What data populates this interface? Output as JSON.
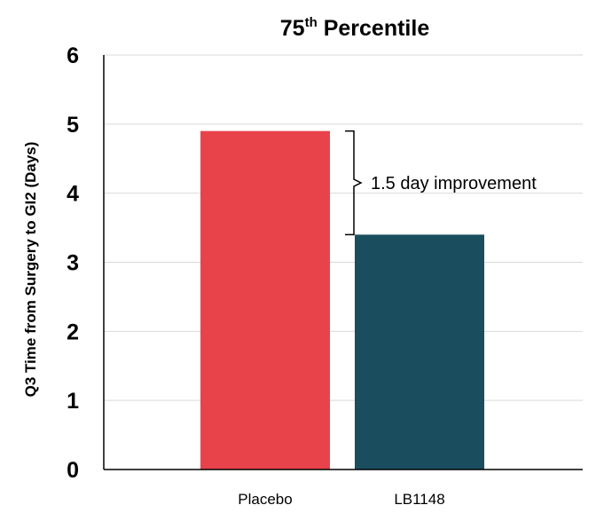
{
  "chart_data": {
    "type": "bar",
    "title": {
      "prefix": "75",
      "superscript": "th",
      "suffix": " Percentile"
    },
    "ylabel": "Q3 Time from Surgery to GI2 (Days)",
    "xlabel": "",
    "categories": [
      "Placebo",
      "LB1148"
    ],
    "values": [
      4.9,
      3.4
    ],
    "colors": [
      "#e8434b",
      "#1a4e5e"
    ],
    "ylim": [
      0,
      6
    ],
    "yticks": [
      "0",
      "1",
      "2",
      "3",
      "4",
      "5",
      "6"
    ],
    "grid": true,
    "annotation": {
      "text": "1.5 day improvement",
      "from_value": 4.9,
      "to_value": 3.4
    }
  }
}
